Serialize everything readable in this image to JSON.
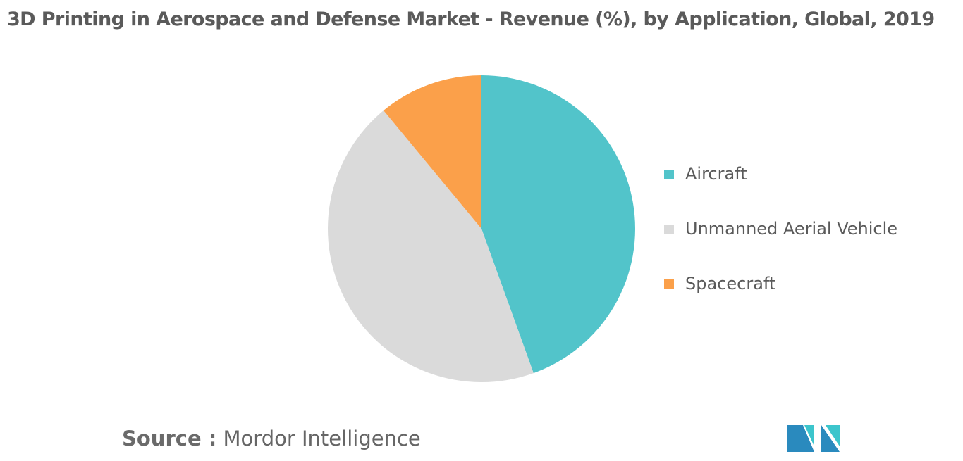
{
  "chart_data": {
    "type": "pie",
    "title": "3D Printing in Aerospace and Defense Market - Revenue (%), by Application, Global, 2019",
    "slices": [
      {
        "label": "Aircraft",
        "value": 44.5,
        "color": "#52C4CA"
      },
      {
        "label": "Unmanned Aerial Vehicle",
        "value": 44.5,
        "color": "#DADADA"
      },
      {
        "label": "Spacecraft",
        "value": 11.0,
        "color": "#FBA04A"
      }
    ],
    "legend_position": "right",
    "start_angle": "12 o'clock",
    "direction": "clockwise"
  },
  "source": {
    "prefix": "Source :",
    "text": "Mordor Intelligence"
  },
  "logo": {
    "icon": "mordor-intelligence-logo-icon",
    "colors": [
      "#2A8ABE",
      "#3CC5CC"
    ]
  }
}
